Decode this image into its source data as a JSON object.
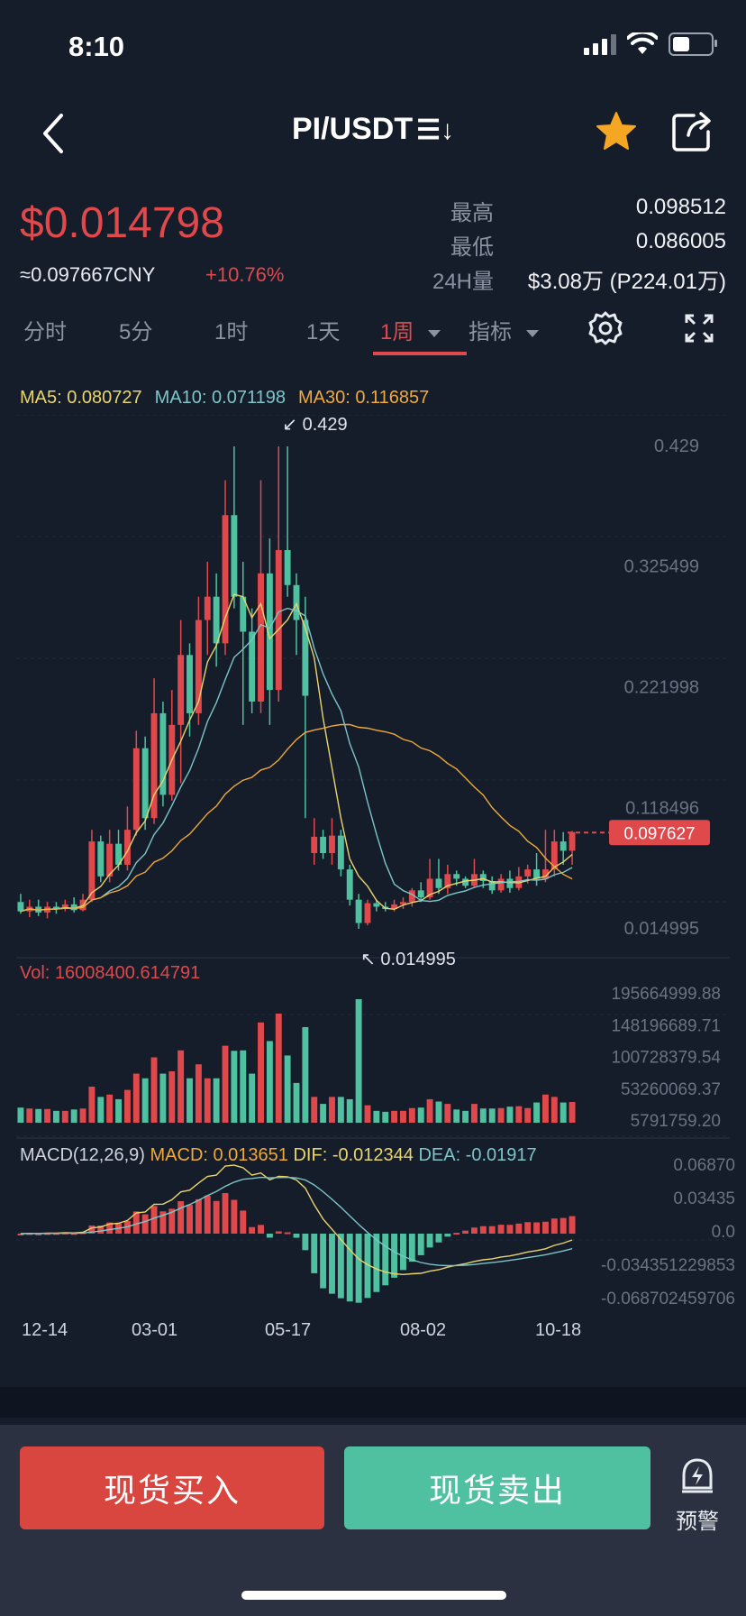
{
  "status": {
    "time": "8:10"
  },
  "header": {
    "pair": "PI/USDT",
    "swap_glyph": "☰↓"
  },
  "ticker": {
    "price": "$0.014798",
    "cny": "≈0.097667CNY",
    "change": "+10.76%",
    "stats": [
      {
        "label": "最高",
        "value": "0.098512"
      },
      {
        "label": "最低",
        "value": "0.086005"
      },
      {
        "label": "24H量",
        "value": "$3.08万 (P224.01万)"
      }
    ]
  },
  "tabs": [
    {
      "label": "分时"
    },
    {
      "label": "5分"
    },
    {
      "label": "1时"
    },
    {
      "label": "1天"
    },
    {
      "label": "1周",
      "active": true
    },
    {
      "label": "指标"
    }
  ],
  "ma": {
    "ma5": "MA5: 0.080727",
    "ma10": "MA10: 0.071198",
    "ma30": "MA30: 0.116857"
  },
  "chart_data": {
    "type": "candlestick",
    "price_axis": [
      "0.429",
      "0.325499",
      "0.221998",
      "0.118496",
      "0.014995"
    ],
    "last_price_tag": "0.097627",
    "high_marker": "0.429",
    "low_marker": "0.014995",
    "x_labels": [
      "12-14",
      "03-01",
      "05-17",
      "08-02",
      "10-18"
    ],
    "candles": [
      [
        0.038,
        0.03,
        0.045,
        0.028
      ],
      [
        0.03,
        0.034,
        0.04,
        0.025
      ],
      [
        0.034,
        0.029,
        0.04,
        0.026
      ],
      [
        0.029,
        0.034,
        0.038,
        0.024
      ],
      [
        0.034,
        0.033,
        0.038,
        0.028
      ],
      [
        0.033,
        0.036,
        0.04,
        0.03
      ],
      [
        0.036,
        0.031,
        0.042,
        0.029
      ],
      [
        0.031,
        0.04,
        0.045,
        0.03
      ],
      [
        0.04,
        0.09,
        0.1,
        0.038
      ],
      [
        0.09,
        0.06,
        0.095,
        0.055
      ],
      [
        0.06,
        0.088,
        0.1,
        0.055
      ],
      [
        0.088,
        0.07,
        0.1,
        0.065
      ],
      [
        0.07,
        0.1,
        0.12,
        0.065
      ],
      [
        0.1,
        0.17,
        0.185,
        0.095
      ],
      [
        0.17,
        0.11,
        0.18,
        0.1
      ],
      [
        0.11,
        0.2,
        0.23,
        0.105
      ],
      [
        0.2,
        0.13,
        0.21,
        0.12
      ],
      [
        0.13,
        0.19,
        0.22,
        0.125
      ],
      [
        0.19,
        0.25,
        0.28,
        0.14
      ],
      [
        0.25,
        0.2,
        0.26,
        0.18
      ],
      [
        0.2,
        0.28,
        0.3,
        0.19
      ],
      [
        0.28,
        0.3,
        0.33,
        0.25
      ],
      [
        0.3,
        0.26,
        0.32,
        0.24
      ],
      [
        0.26,
        0.37,
        0.4,
        0.25
      ],
      [
        0.37,
        0.3,
        0.429,
        0.29
      ],
      [
        0.3,
        0.27,
        0.33,
        0.19
      ],
      [
        0.27,
        0.21,
        0.29,
        0.2
      ],
      [
        0.21,
        0.32,
        0.4,
        0.2
      ],
      [
        0.32,
        0.22,
        0.35,
        0.19
      ],
      [
        0.22,
        0.34,
        0.429,
        0.21
      ],
      [
        0.34,
        0.31,
        0.429,
        0.3
      ],
      [
        0.31,
        0.28,
        0.32,
        0.25
      ],
      [
        0.28,
        0.215,
        0.3,
        0.11
      ],
      [
        0.08,
        0.094,
        0.11,
        0.07
      ],
      [
        0.094,
        0.08,
        0.1,
        0.075
      ],
      [
        0.08,
        0.095,
        0.11,
        0.07
      ],
      [
        0.095,
        0.066,
        0.1,
        0.06
      ],
      [
        0.066,
        0.04,
        0.07,
        0.035
      ],
      [
        0.04,
        0.02,
        0.045,
        0.015
      ],
      [
        0.02,
        0.037,
        0.04,
        0.018
      ],
      [
        0.037,
        0.034,
        0.04,
        0.03
      ],
      [
        0.034,
        0.032,
        0.038,
        0.03
      ],
      [
        0.032,
        0.036,
        0.04,
        0.03
      ],
      [
        0.036,
        0.038,
        0.042,
        0.032
      ],
      [
        0.038,
        0.048,
        0.05,
        0.034
      ],
      [
        0.048,
        0.042,
        0.055,
        0.038
      ],
      [
        0.042,
        0.058,
        0.075,
        0.04
      ],
      [
        0.058,
        0.05,
        0.075,
        0.045
      ],
      [
        0.05,
        0.062,
        0.07,
        0.045
      ],
      [
        0.062,
        0.058,
        0.065,
        0.052
      ],
      [
        0.058,
        0.052,
        0.06,
        0.05
      ],
      [
        0.052,
        0.062,
        0.075,
        0.05
      ],
      [
        0.062,
        0.056,
        0.065,
        0.05
      ],
      [
        0.056,
        0.048,
        0.06,
        0.045
      ],
      [
        0.048,
        0.058,
        0.062,
        0.046
      ],
      [
        0.058,
        0.05,
        0.065,
        0.046
      ],
      [
        0.05,
        0.06,
        0.068,
        0.048
      ],
      [
        0.06,
        0.066,
        0.07,
        0.054
      ],
      [
        0.066,
        0.058,
        0.08,
        0.052
      ],
      [
        0.058,
        0.066,
        0.1,
        0.055
      ],
      [
        0.066,
        0.09,
        0.1,
        0.06
      ],
      [
        0.09,
        0.082,
        0.098,
        0.07
      ],
      [
        0.082,
        0.098,
        0.099,
        0.07
      ]
    ],
    "volume": {
      "label": "Vol: 16008400.614791",
      "axis": [
        "195664999.88",
        "148196689.71",
        "100728379.54",
        "53260069.37",
        "5791759.20"
      ]
    },
    "macd": {
      "label_title": "MACD(12,26,9)",
      "label_macd": "MACD: 0.013651",
      "label_dif": "DIF: -0.012344",
      "label_dea": "DEA: -0.01917",
      "axis": [
        "0.06870",
        "0.03435",
        "0.0",
        "-0.034351229853",
        "-0.068702459706"
      ]
    }
  },
  "actions": {
    "buy": "现货买入",
    "sell": "现货卖出",
    "alert": "预警"
  },
  "colors": {
    "up": "#e0494b",
    "down": "#4fc1a0",
    "ma5": "#e9d56e",
    "ma10": "#7cc6c8",
    "ma30": "#f0a93b"
  }
}
